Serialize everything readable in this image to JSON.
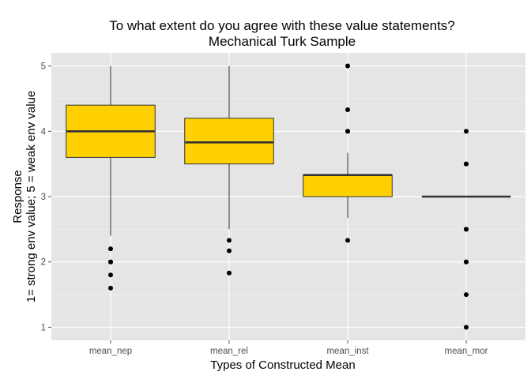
{
  "chart_data": {
    "type": "box",
    "title_lines": [
      "To what extent do you agree with these value statements?",
      "Mechanical Turk Sample"
    ],
    "xlabel": "Types of Constructed Mean",
    "ylabel_lines": [
      "Response",
      "1= strong env value; 5 = weak env value"
    ],
    "ylim": [
      0.8,
      5.2
    ],
    "yticks": [
      1,
      2,
      3,
      4,
      5
    ],
    "categories": [
      "mean_nep",
      "mean_rel",
      "mean_inst",
      "mean_mor"
    ],
    "boxes": [
      {
        "category": "mean_nep",
        "whisker_low": 2.4,
        "q1": 3.6,
        "median": 4.0,
        "q3": 4.4,
        "whisker_high": 5.0,
        "outliers": [
          2.2,
          2.0,
          2.0,
          1.8,
          1.6
        ]
      },
      {
        "category": "mean_rel",
        "whisker_low": 2.5,
        "q1": 3.5,
        "median": 3.83,
        "q3": 4.2,
        "whisker_high": 5.0,
        "outliers": [
          2.33,
          2.17,
          1.83
        ]
      },
      {
        "category": "mean_inst",
        "whisker_low": 2.67,
        "q1": 3.0,
        "median": 3.33,
        "q3": 3.33,
        "whisker_high": 3.67,
        "outliers": [
          5.0,
          4.33,
          4.0,
          4.0,
          2.33
        ]
      },
      {
        "category": "mean_mor",
        "whisker_low": 3.0,
        "q1": 3.0,
        "median": 3.0,
        "q3": 3.0,
        "whisker_high": 3.0,
        "outliers": [
          4.0,
          3.5,
          3.5,
          2.5,
          2.5,
          2.0,
          2.0,
          1.5,
          1.0
        ]
      }
    ],
    "colors": {
      "box_fill": "#FFD100",
      "box_stroke": "#333333",
      "panel_bg": "#E5E5E5",
      "grid_major": "#FFFFFF",
      "grid_minor": "#F2F2F2",
      "point": "#000000"
    },
    "grid": true,
    "legend": "none"
  }
}
